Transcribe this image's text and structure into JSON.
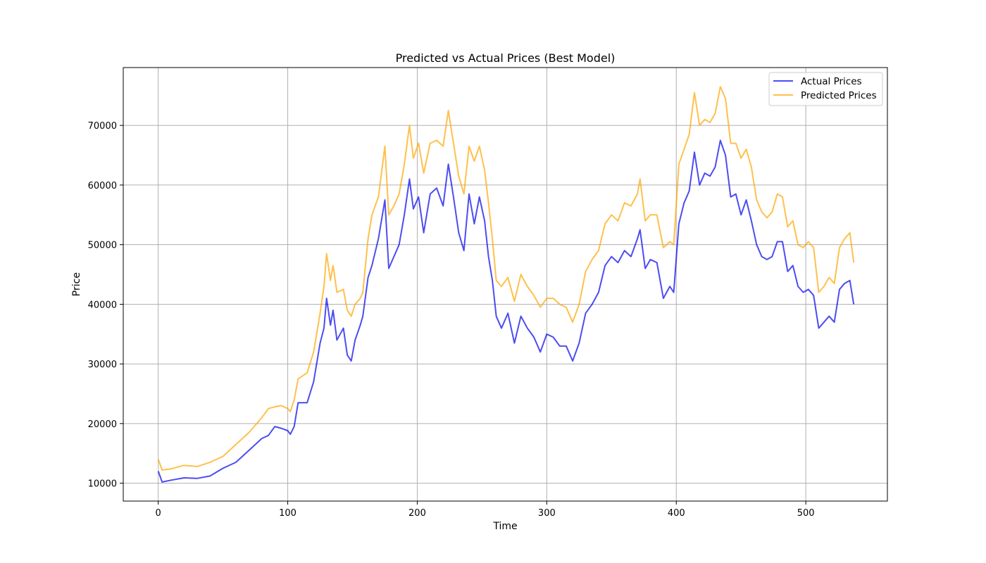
{
  "chart_data": {
    "type": "line",
    "title": "Predicted vs Actual Prices (Best Model)",
    "xlabel": "Time",
    "ylabel": "Price",
    "xlim": [
      -27,
      563
    ],
    "ylim": [
      7000,
      79700
    ],
    "xticks": [
      0,
      100,
      200,
      300,
      400,
      500
    ],
    "yticks": [
      10000,
      20000,
      30000,
      40000,
      50000,
      60000,
      70000
    ],
    "xtick_labels": [
      "0",
      "100",
      "200",
      "300",
      "400",
      "500"
    ],
    "ytick_labels": [
      "10000",
      "20000",
      "30000",
      "40000",
      "50000",
      "60000",
      "70000"
    ],
    "grid": true,
    "legend_position": "top-right",
    "series": [
      {
        "name": "Actual Prices",
        "color": "#0000ee",
        "opacity": 0.7,
        "points": [
          [
            0,
            12000
          ],
          [
            3,
            10200
          ],
          [
            10,
            10500
          ],
          [
            20,
            10900
          ],
          [
            30,
            10800
          ],
          [
            40,
            11200
          ],
          [
            50,
            12500
          ],
          [
            60,
            13500
          ],
          [
            70,
            15500
          ],
          [
            80,
            17500
          ],
          [
            85,
            18000
          ],
          [
            90,
            19500
          ],
          [
            95,
            19200
          ],
          [
            100,
            18800
          ],
          [
            102,
            18200
          ],
          [
            105,
            19500
          ],
          [
            108,
            23500
          ],
          [
            115,
            23500
          ],
          [
            120,
            27000
          ],
          [
            125,
            33500
          ],
          [
            128,
            36000
          ],
          [
            130,
            41000
          ],
          [
            133,
            36500
          ],
          [
            135,
            39000
          ],
          [
            138,
            34000
          ],
          [
            143,
            36000
          ],
          [
            146,
            31500
          ],
          [
            149,
            30500
          ],
          [
            152,
            34000
          ],
          [
            156,
            36500
          ],
          [
            158,
            38000
          ],
          [
            162,
            44500
          ],
          [
            165,
            46500
          ],
          [
            170,
            51000
          ],
          [
            175,
            57500
          ],
          [
            178,
            46000
          ],
          [
            182,
            48000
          ],
          [
            186,
            50000
          ],
          [
            190,
            55000
          ],
          [
            194,
            61000
          ],
          [
            197,
            56000
          ],
          [
            201,
            58000
          ],
          [
            205,
            52000
          ],
          [
            210,
            58500
          ],
          [
            215,
            59500
          ],
          [
            220,
            56500
          ],
          [
            224,
            63500
          ],
          [
            228,
            58000
          ],
          [
            232,
            52000
          ],
          [
            236,
            49000
          ],
          [
            240,
            58500
          ],
          [
            244,
            53500
          ],
          [
            248,
            58000
          ],
          [
            252,
            54000
          ],
          [
            255,
            48000
          ],
          [
            258,
            44000
          ],
          [
            261,
            38000
          ],
          [
            265,
            36000
          ],
          [
            270,
            38500
          ],
          [
            275,
            33500
          ],
          [
            280,
            38000
          ],
          [
            285,
            36000
          ],
          [
            290,
            34500
          ],
          [
            295,
            32000
          ],
          [
            300,
            35000
          ],
          [
            305,
            34500
          ],
          [
            310,
            33000
          ],
          [
            315,
            33000
          ],
          [
            320,
            30500
          ],
          [
            325,
            33500
          ],
          [
            330,
            38500
          ],
          [
            335,
            40000
          ],
          [
            340,
            42000
          ],
          [
            345,
            46500
          ],
          [
            350,
            48000
          ],
          [
            355,
            47000
          ],
          [
            360,
            49000
          ],
          [
            365,
            48000
          ],
          [
            370,
            51000
          ],
          [
            372,
            52500
          ],
          [
            376,
            46000
          ],
          [
            380,
            47500
          ],
          [
            385,
            47000
          ],
          [
            390,
            41000
          ],
          [
            395,
            43000
          ],
          [
            398,
            42000
          ],
          [
            402,
            53500
          ],
          [
            406,
            57000
          ],
          [
            410,
            59000
          ],
          [
            414,
            65500
          ],
          [
            418,
            60000
          ],
          [
            422,
            62000
          ],
          [
            426,
            61500
          ],
          [
            430,
            63000
          ],
          [
            434,
            67500
          ],
          [
            438,
            65000
          ],
          [
            442,
            58000
          ],
          [
            446,
            58500
          ],
          [
            450,
            55000
          ],
          [
            454,
            57500
          ],
          [
            458,
            54000
          ],
          [
            462,
            50000
          ],
          [
            466,
            48000
          ],
          [
            470,
            47500
          ],
          [
            474,
            48000
          ],
          [
            478,
            50500
          ],
          [
            482,
            50500
          ],
          [
            486,
            45500
          ],
          [
            490,
            46500
          ],
          [
            494,
            43000
          ],
          [
            498,
            42000
          ],
          [
            502,
            42500
          ],
          [
            506,
            41500
          ],
          [
            510,
            36000
          ],
          [
            514,
            37000
          ],
          [
            518,
            38000
          ],
          [
            522,
            37000
          ],
          [
            526,
            42500
          ],
          [
            530,
            43500
          ],
          [
            534,
            44000
          ],
          [
            537,
            40000
          ]
        ]
      },
      {
        "name": "Predicted Prices",
        "color": "#ffa500",
        "opacity": 0.7,
        "points": [
          [
            0,
            14000
          ],
          [
            3,
            12200
          ],
          [
            10,
            12400
          ],
          [
            20,
            13000
          ],
          [
            30,
            12800
          ],
          [
            40,
            13500
          ],
          [
            50,
            14500
          ],
          [
            60,
            16500
          ],
          [
            70,
            18500
          ],
          [
            80,
            21000
          ],
          [
            85,
            22500
          ],
          [
            90,
            22800
          ],
          [
            95,
            23000
          ],
          [
            100,
            22500
          ],
          [
            102,
            22000
          ],
          [
            105,
            24000
          ],
          [
            108,
            27500
          ],
          [
            115,
            28500
          ],
          [
            120,
            32000
          ],
          [
            125,
            38500
          ],
          [
            128,
            43000
          ],
          [
            130,
            48500
          ],
          [
            133,
            44000
          ],
          [
            135,
            46500
          ],
          [
            138,
            42000
          ],
          [
            143,
            42500
          ],
          [
            146,
            39000
          ],
          [
            149,
            38000
          ],
          [
            152,
            40000
          ],
          [
            156,
            41000
          ],
          [
            158,
            42000
          ],
          [
            162,
            51000
          ],
          [
            165,
            55000
          ],
          [
            170,
            58000
          ],
          [
            175,
            66500
          ],
          [
            178,
            55000
          ],
          [
            182,
            56500
          ],
          [
            186,
            58500
          ],
          [
            190,
            63500
          ],
          [
            194,
            70000
          ],
          [
            197,
            64500
          ],
          [
            201,
            67000
          ],
          [
            205,
            62000
          ],
          [
            210,
            67000
          ],
          [
            215,
            67500
          ],
          [
            220,
            66500
          ],
          [
            224,
            72500
          ],
          [
            228,
            67000
          ],
          [
            232,
            61500
          ],
          [
            236,
            58500
          ],
          [
            240,
            66500
          ],
          [
            244,
            64000
          ],
          [
            248,
            66500
          ],
          [
            252,
            62500
          ],
          [
            255,
            57000
          ],
          [
            258,
            51000
          ],
          [
            261,
            44000
          ],
          [
            265,
            43000
          ],
          [
            270,
            44500
          ],
          [
            275,
            40500
          ],
          [
            280,
            45000
          ],
          [
            285,
            43000
          ],
          [
            290,
            41500
          ],
          [
            295,
            39500
          ],
          [
            300,
            41000
          ],
          [
            305,
            41000
          ],
          [
            310,
            40000
          ],
          [
            315,
            39500
          ],
          [
            320,
            37000
          ],
          [
            325,
            40000
          ],
          [
            330,
            45500
          ],
          [
            335,
            47500
          ],
          [
            340,
            49000
          ],
          [
            345,
            53500
          ],
          [
            350,
            55000
          ],
          [
            355,
            54000
          ],
          [
            360,
            57000
          ],
          [
            365,
            56500
          ],
          [
            370,
            58500
          ],
          [
            372,
            61000
          ],
          [
            376,
            54000
          ],
          [
            380,
            55000
          ],
          [
            385,
            55000
          ],
          [
            390,
            49500
          ],
          [
            395,
            50500
          ],
          [
            398,
            50000
          ],
          [
            402,
            63500
          ],
          [
            406,
            66000
          ],
          [
            410,
            68500
          ],
          [
            414,
            75500
          ],
          [
            418,
            70000
          ],
          [
            422,
            71000
          ],
          [
            426,
            70500
          ],
          [
            430,
            72000
          ],
          [
            434,
            76500
          ],
          [
            438,
            74500
          ],
          [
            442,
            67000
          ],
          [
            446,
            67000
          ],
          [
            450,
            64500
          ],
          [
            454,
            66000
          ],
          [
            458,
            63000
          ],
          [
            462,
            57500
          ],
          [
            466,
            55500
          ],
          [
            470,
            54500
          ],
          [
            474,
            55500
          ],
          [
            478,
            58500
          ],
          [
            482,
            58000
          ],
          [
            486,
            53000
          ],
          [
            490,
            54000
          ],
          [
            494,
            50000
          ],
          [
            498,
            49500
          ],
          [
            502,
            50500
          ],
          [
            506,
            49500
          ],
          [
            510,
            42000
          ],
          [
            514,
            43000
          ],
          [
            518,
            44500
          ],
          [
            522,
            43500
          ],
          [
            526,
            49500
          ],
          [
            530,
            51000
          ],
          [
            534,
            52000
          ],
          [
            537,
            47000
          ]
        ]
      }
    ]
  }
}
